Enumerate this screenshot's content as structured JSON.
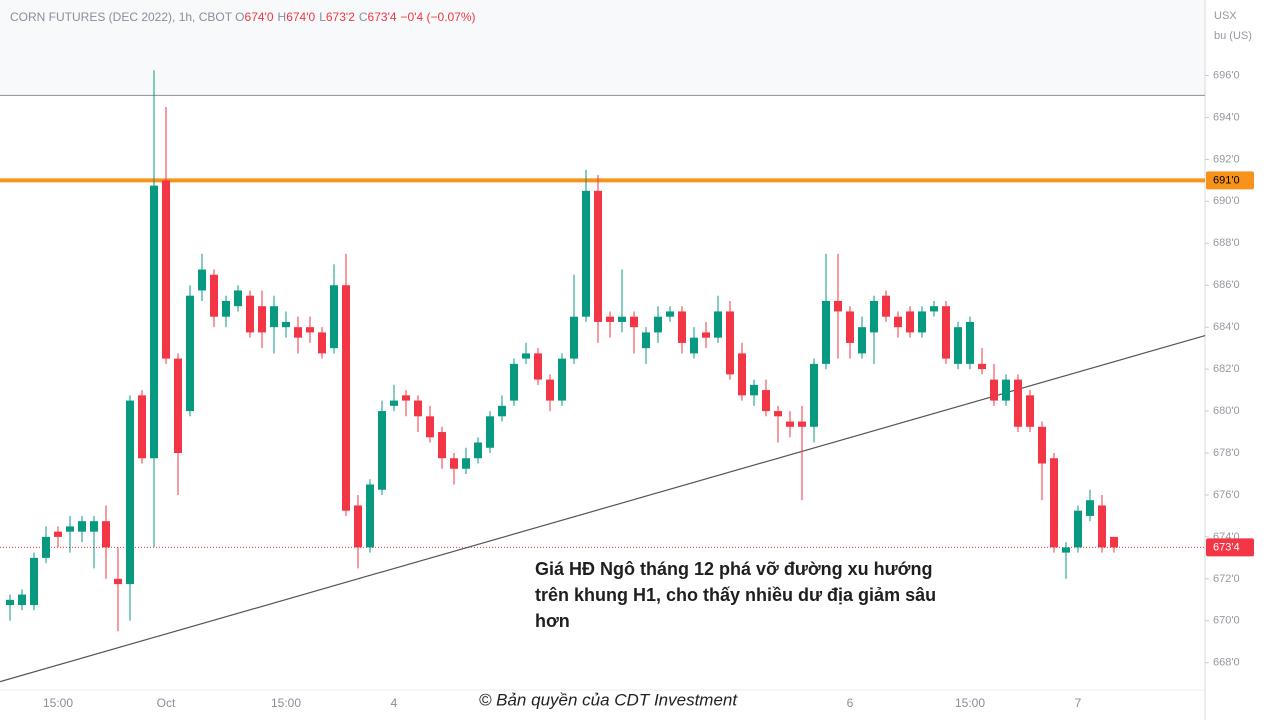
{
  "chart_data": {
    "type": "candlestick",
    "title": "CORN FUTURES (DEC 2022), 1h, CBOT",
    "ohlc_labels": [
      "O",
      "H",
      "L",
      "C"
    ],
    "ohlc_values": [
      "674'0",
      "674'0",
      "673'2",
      "673'4"
    ],
    "change": "−0'4 (−0.07%)",
    "unit_label": [
      "USX",
      "bu (US)"
    ],
    "categories": [
      null,
      null,
      null,
      null,
      "15:00",
      null,
      null,
      null,
      null,
      null,
      null,
      null,
      null,
      "Oct",
      null,
      null,
      null,
      null,
      null,
      null,
      null,
      null,
      null,
      "15:00",
      null,
      null,
      null,
      null,
      null,
      null,
      null,
      null,
      "4",
      null,
      null,
      null,
      null,
      null,
      null,
      null,
      null,
      null,
      null,
      null,
      null,
      null,
      null,
      null,
      null,
      null,
      null,
      null,
      null,
      null,
      null,
      null,
      null,
      null,
      null,
      null,
      null,
      null,
      null,
      null,
      null,
      null,
      null,
      null,
      null,
      null,
      "6",
      null,
      null,
      null,
      null,
      null,
      null,
      null,
      null,
      null,
      "15:00",
      null,
      null,
      null,
      null,
      null,
      null,
      null,
      null,
      "7",
      null,
      null,
      null
    ],
    "open": [
      670.75,
      670.75,
      670.75,
      673.0,
      674.25,
      674.25,
      674.25,
      674.25,
      674.75,
      672.0,
      671.75,
      680.75,
      677.75,
      691.0,
      682.5,
      680.0,
      685.75,
      686.5,
      684.5,
      685.0,
      685.5,
      685.0,
      684.0,
      684.0,
      684.0,
      684.0,
      683.75,
      683.0,
      686.0,
      675.5,
      673.5,
      676.25,
      680.25,
      680.75,
      680.5,
      679.75,
      679.0,
      677.75,
      677.25,
      677.75,
      678.25,
      679.75,
      680.5,
      682.5,
      682.75,
      681.5,
      680.5,
      682.5,
      684.5,
      690.5,
      684.5,
      684.25,
      684.5,
      683.0,
      683.75,
      684.5,
      684.75,
      682.75,
      683.75,
      683.5,
      684.75,
      682.75,
      680.75,
      681.0,
      680.0,
      679.5,
      679.5,
      679.25,
      682.25,
      685.25,
      684.75,
      682.75,
      683.75,
      685.5,
      684.5,
      684.75,
      683.75,
      684.75,
      685.0,
      682.25,
      682.25,
      682.25,
      681.5,
      680.5,
      681.5,
      680.75,
      679.25,
      677.75,
      673.25,
      673.5,
      675.0,
      675.5,
      674.0
    ],
    "high": [
      671.25,
      671.5,
      673.25,
      674.5,
      674.5,
      675.0,
      675.0,
      675.0,
      675.5,
      673.5,
      680.75,
      681.0,
      696.25,
      694.5,
      682.75,
      686.0,
      687.5,
      686.75,
      685.5,
      686.0,
      685.75,
      685.75,
      685.5,
      684.75,
      684.5,
      684.5,
      684.0,
      687.0,
      687.5,
      676.0,
      676.75,
      680.5,
      681.25,
      681.0,
      680.75,
      680.25,
      679.25,
      678.0,
      678.25,
      678.75,
      680.0,
      680.75,
      682.5,
      683.25,
      683.0,
      681.75,
      682.75,
      686.5,
      691.5,
      691.25,
      684.75,
      686.75,
      684.75,
      684.0,
      685.0,
      685.0,
      685.0,
      684.0,
      684.25,
      685.5,
      685.25,
      683.25,
      681.5,
      681.5,
      680.25,
      680.0,
      680.25,
      682.5,
      687.5,
      687.5,
      685.0,
      684.5,
      685.5,
      685.75,
      684.75,
      685.0,
      685.0,
      685.25,
      685.25,
      684.25,
      684.5,
      683.0,
      682.25,
      681.75,
      681.75,
      681.0,
      679.5,
      678.0,
      673.75,
      675.5,
      676.25,
      676.0,
      674.0
    ],
    "low": [
      670.0,
      670.5,
      670.5,
      672.75,
      673.5,
      673.25,
      673.75,
      672.5,
      672.0,
      669.5,
      670.0,
      677.5,
      673.5,
      682.25,
      676.0,
      679.75,
      685.25,
      684.0,
      684.0,
      684.75,
      683.5,
      683.0,
      682.75,
      683.5,
      682.75,
      683.25,
      682.5,
      682.75,
      675.0,
      672.5,
      673.25,
      676.0,
      680.0,
      679.75,
      679.0,
      678.5,
      677.25,
      676.5,
      677.0,
      677.5,
      678.0,
      679.5,
      680.25,
      682.25,
      681.25,
      680.0,
      680.25,
      682.25,
      684.25,
      683.25,
      683.5,
      683.75,
      682.75,
      682.25,
      683.25,
      684.25,
      682.75,
      682.5,
      683.0,
      683.25,
      681.5,
      680.5,
      680.25,
      679.75,
      678.5,
      678.75,
      675.75,
      678.5,
      682.0,
      682.5,
      682.5,
      682.5,
      682.25,
      684.25,
      683.5,
      683.5,
      683.5,
      684.5,
      682.25,
      682.0,
      682.0,
      681.75,
      680.25,
      680.25,
      679.0,
      679.0,
      675.75,
      673.25,
      672.0,
      673.25,
      674.75,
      673.25,
      673.25
    ],
    "close": [
      671.0,
      671.25,
      673.0,
      674.0,
      674.0,
      674.5,
      674.75,
      674.75,
      673.5,
      671.75,
      680.5,
      677.75,
      690.75,
      682.5,
      678.0,
      685.5,
      686.75,
      684.5,
      685.25,
      685.75,
      683.75,
      683.75,
      685.0,
      684.25,
      683.5,
      683.75,
      682.75,
      686.0,
      675.25,
      673.5,
      676.5,
      680.0,
      680.5,
      680.5,
      679.75,
      678.75,
      677.75,
      677.25,
      677.75,
      678.5,
      679.75,
      680.25,
      682.25,
      682.75,
      681.5,
      680.5,
      682.5,
      684.5,
      690.5,
      684.25,
      684.25,
      684.5,
      684.0,
      683.75,
      684.5,
      684.75,
      683.25,
      683.5,
      683.5,
      684.75,
      681.75,
      680.75,
      681.25,
      680.0,
      679.75,
      679.25,
      679.25,
      682.25,
      685.25,
      684.75,
      683.25,
      684.0,
      685.25,
      684.5,
      684.0,
      683.75,
      684.75,
      685.0,
      682.5,
      684.0,
      684.25,
      682.0,
      680.5,
      681.5,
      679.25,
      679.25,
      677.5,
      673.5,
      673.5,
      675.25,
      675.75,
      673.5,
      673.5
    ],
    "up_color": "#089981",
    "down_color": "#f23645",
    "ylim": [
      666.7,
      699.6
    ],
    "yticks": [
      {
        "value": 668,
        "label": "668'0"
      },
      {
        "value": 670,
        "label": "670'0"
      },
      {
        "value": 672,
        "label": "672'0"
      },
      {
        "value": 674,
        "label": "674'0"
      },
      {
        "value": 676,
        "label": "676'0"
      },
      {
        "value": 678,
        "label": "678'0"
      },
      {
        "value": 680,
        "label": "680'0"
      },
      {
        "value": 682,
        "label": "682'0"
      },
      {
        "value": 684,
        "label": "684'0"
      },
      {
        "value": 686,
        "label": "686'0"
      },
      {
        "value": 688,
        "label": "688'0"
      },
      {
        "value": 690,
        "label": "690'0"
      },
      {
        "value": 692,
        "label": "692'0"
      },
      {
        "value": 694,
        "label": "694'0"
      },
      {
        "value": 696,
        "label": "696'0"
      }
    ],
    "hlines": [
      {
        "value": 691.0,
        "label": "691'0",
        "color": "#f7931a"
      },
      {
        "value": 695.05,
        "color": "#8a8e99"
      }
    ],
    "last_price": {
      "value": 673.5,
      "label": "673'4",
      "color": "#f23645"
    },
    "trendline": {
      "x": [
        -0.83,
        99.6
      ],
      "y": [
        667.1,
        683.6
      ],
      "color": "#555555"
    },
    "annotation": [
      "Giá HĐ Ngô tháng 12 phá vỡ đường xu hướng",
      "trên khung H1, cho thấy nhiều dư địa giảm sâu",
      "hơn"
    ],
    "copyright": "© Bản quyền của CDT Investment"
  }
}
